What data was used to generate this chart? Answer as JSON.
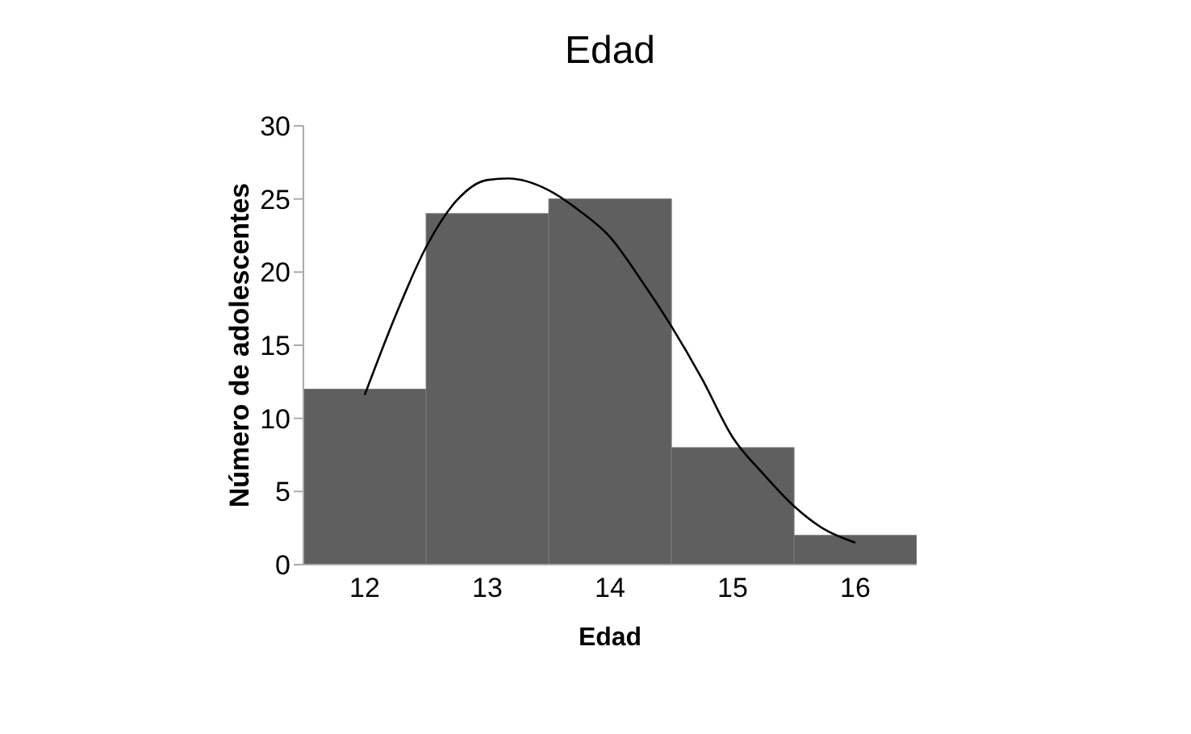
{
  "chart_data": {
    "type": "histogram",
    "title": "Edad",
    "xlabel": "Edad",
    "ylabel": "Número de adolescentes",
    "bins": [
      11.5,
      12.5,
      13.5,
      14.5,
      15.5,
      16.5
    ],
    "values": [
      12,
      24,
      25,
      8,
      2
    ],
    "color": "#5f5f5f",
    "xlim": [
      11.5,
      16.5
    ],
    "xticks": [
      12,
      13,
      14,
      15,
      16
    ],
    "ylim": [
      0,
      30
    ],
    "yticks": [
      0,
      5,
      10,
      15,
      20,
      25,
      30
    ],
    "grid": false,
    "legend": false,
    "series": [
      {
        "type": "line",
        "color": "#000000",
        "x": [
          12,
          12.25,
          12.5,
          12.75,
          13,
          13.17,
          13.5,
          13.75,
          14,
          14.25,
          14.5,
          14.75,
          15,
          15.25,
          15.5,
          15.75,
          16
        ],
        "values": [
          11.6,
          17,
          21.7,
          24.9,
          26.3,
          26.4,
          25.6,
          24.2,
          22.4,
          19.5,
          16.3,
          12.7,
          8.7,
          6.2,
          4,
          2.4,
          1.5
        ]
      }
    ]
  }
}
